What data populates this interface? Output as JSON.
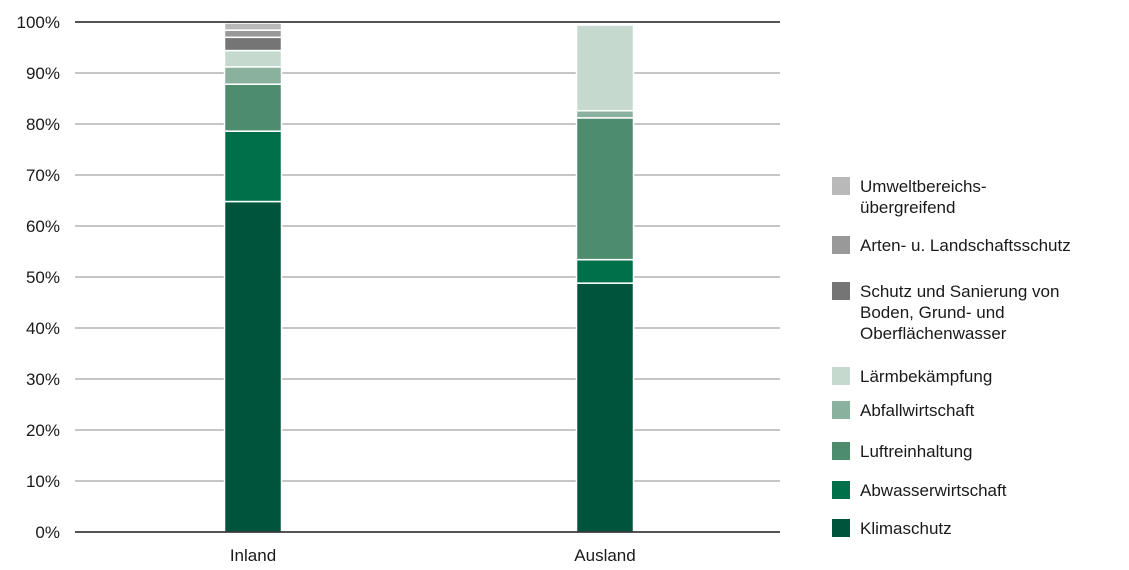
{
  "chart_data": {
    "type": "bar",
    "stacked": true,
    "categories": [
      "Inland",
      "Ausland"
    ],
    "y_ticks": [
      "0%",
      "10%",
      "20%",
      "30%",
      "40%",
      "50%",
      "60%",
      "70%",
      "80%",
      "90%",
      "100%"
    ],
    "ylim": [
      0,
      100
    ],
    "grid": true,
    "legend_position": "right",
    "series": [
      {
        "name": "Klimaschutz",
        "color": "#00543c",
        "values": [
          64.8,
          48.8
        ]
      },
      {
        "name": "Abwasserwirtschaft",
        "color": "#00704a",
        "values": [
          13.8,
          4.6
        ]
      },
      {
        "name": "Luftreinhaltung",
        "color": "#4e8c6e",
        "values": [
          9.2,
          27.8
        ]
      },
      {
        "name": "Abfallwirtschaft",
        "color": "#8ab09e",
        "values": [
          3.4,
          1.4
        ]
      },
      {
        "name": "Lärmbekämpfung",
        "color": "#c5d9cf",
        "values": [
          3.2,
          16.8
        ]
      },
      {
        "name": "Schutz und Sanierung von Boden, Grund- und Oberflächenwasser",
        "legend_lines": [
          "Schutz und Sanierung von",
          "Boden, Grund- und",
          "Oberflächenwasser"
        ],
        "color": "#757575",
        "values": [
          2.6,
          0
        ]
      },
      {
        "name": "Arten- u. Landschaftsschutz",
        "legend_lines": [
          "Arten- u. Landschaftsschutz"
        ],
        "color": "#999999",
        "values": [
          1.4,
          0
        ]
      },
      {
        "name": "Umweltbereichs- übergreifend",
        "legend_lines": [
          "Umweltbereichs-",
          "übergreifend"
        ],
        "color": "#b9b9b9",
        "values": [
          1.4,
          0
        ]
      }
    ]
  }
}
